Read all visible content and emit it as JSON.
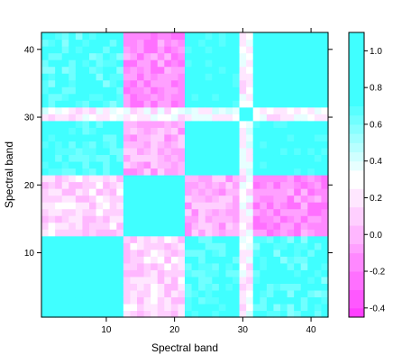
{
  "chart_data": {
    "type": "heatmap",
    "title": "",
    "xlabel": "Spectral band",
    "ylabel": "Spectral band",
    "x_range": [
      1,
      42
    ],
    "y_range": [
      1,
      42
    ],
    "x_ticks": [
      10,
      20,
      30,
      40
    ],
    "y_ticks": [
      10,
      20,
      30,
      40
    ],
    "colorbar": {
      "range": [
        -0.45,
        1.1
      ],
      "ticks": [
        -0.4,
        -0.2,
        0.0,
        0.2,
        0.4,
        0.6,
        0.8,
        1.0
      ],
      "tick_labels": [
        "-0.4",
        "-0.2",
        "0.0",
        "0.2",
        "0.4",
        "0.6",
        "0.8",
        "1.0"
      ],
      "low_color": "#ff40ff",
      "mid_color": "#ffffff",
      "high_color": "#40ffff"
    },
    "groups": [
      {
        "bands": [
          1,
          12
        ],
        "level": 0
      },
      {
        "bands": [
          13,
          21
        ],
        "level": 1
      },
      {
        "bands": [
          22,
          29
        ],
        "level": 0
      },
      {
        "bands": [
          30,
          31
        ],
        "level": 2
      },
      {
        "bands": [
          32,
          42
        ],
        "level": 0
      }
    ],
    "block_correlations": [
      [
        0.88,
        0.15,
        0.75,
        0.25,
        0.72
      ],
      [
        0.15,
        0.88,
        0.0,
        0.25,
        -0.15
      ],
      [
        0.75,
        0.0,
        0.88,
        0.3,
        0.8
      ],
      [
        0.25,
        0.25,
        0.3,
        0.88,
        0.25
      ],
      [
        0.72,
        -0.15,
        0.8,
        0.25,
        0.9
      ]
    ],
    "diagonal": 1.0
  }
}
